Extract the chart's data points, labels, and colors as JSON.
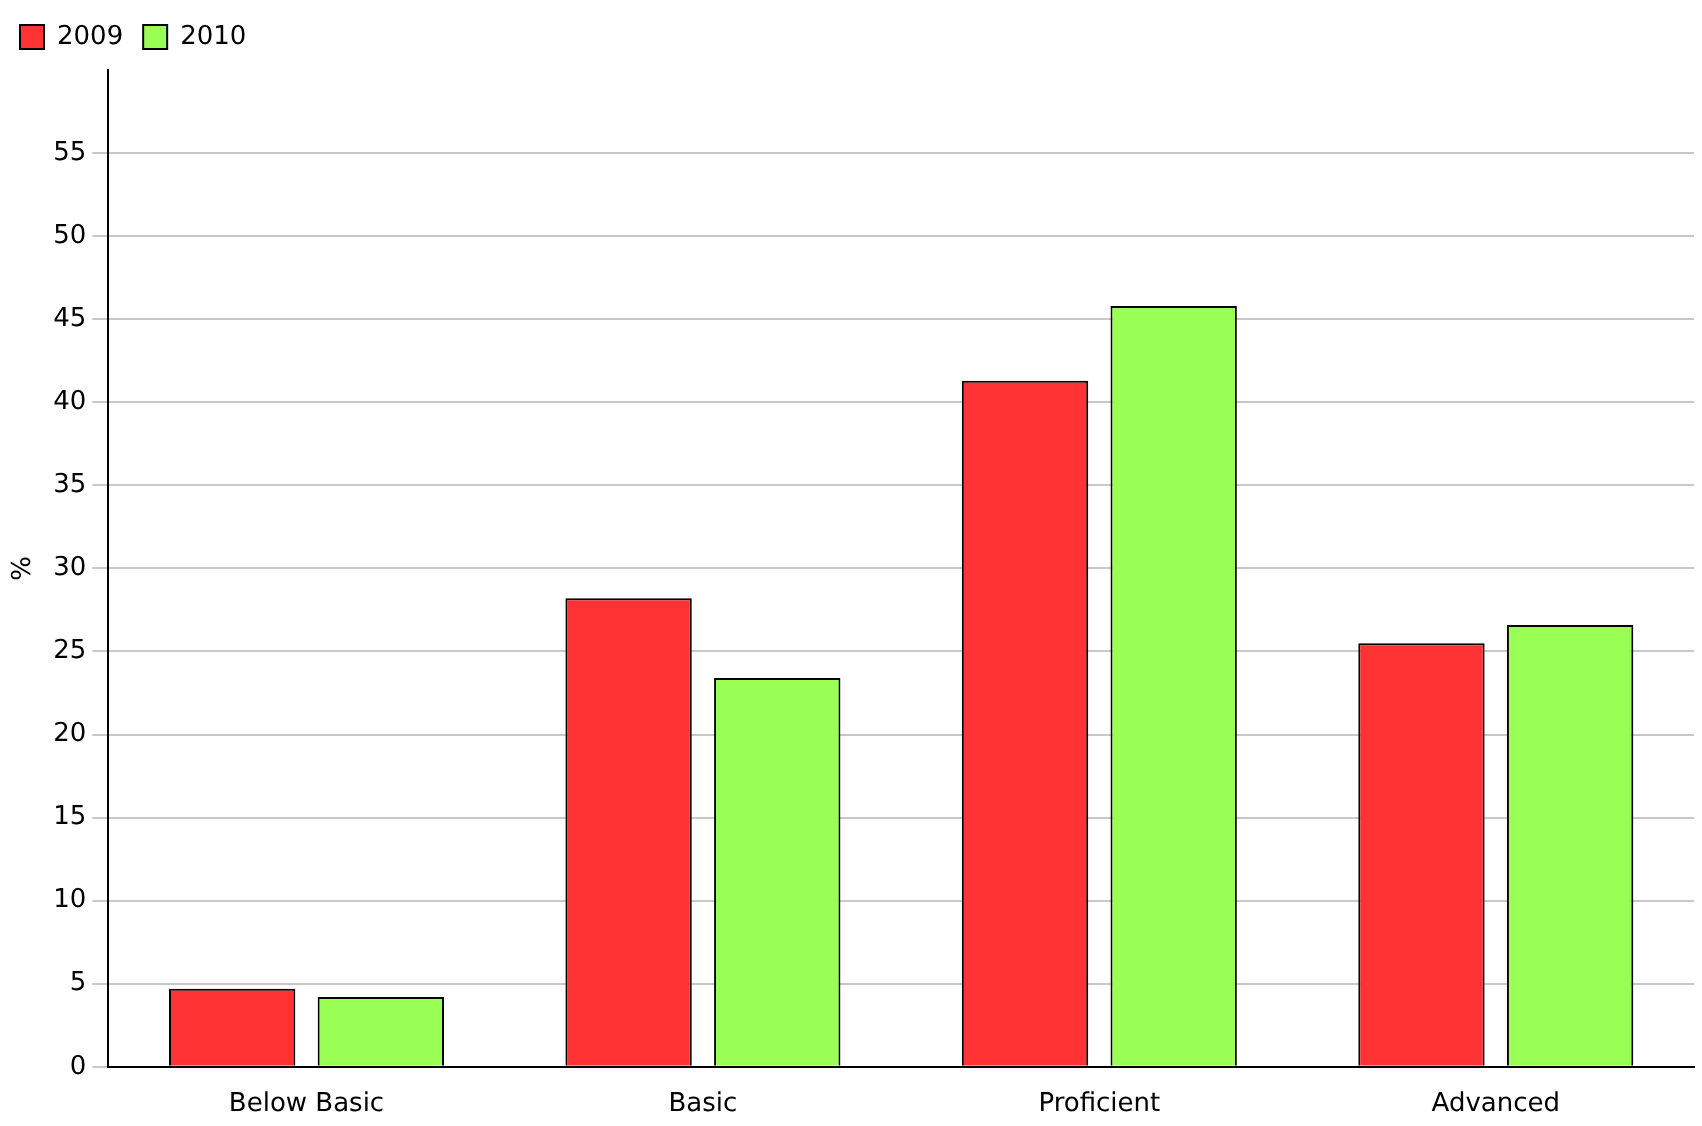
{
  "chart_data": {
    "type": "bar",
    "ylabel": "%",
    "categories": [
      "Below Basic",
      "Basic",
      "Proficient",
      "Advanced"
    ],
    "series": [
      {
        "name": "2009",
        "color": "#ff3333",
        "values": [
          4.7,
          28.2,
          41.3,
          25.5
        ]
      },
      {
        "name": "2010",
        "color": "#99ff55",
        "values": [
          4.2,
          23.4,
          45.8,
          26.6
        ]
      }
    ],
    "ylim": [
      0,
      60
    ],
    "yticks": [
      0,
      5,
      10,
      15,
      20,
      25,
      30,
      35,
      40,
      45,
      50,
      55
    ],
    "grid": "y",
    "legend": "top left"
  }
}
